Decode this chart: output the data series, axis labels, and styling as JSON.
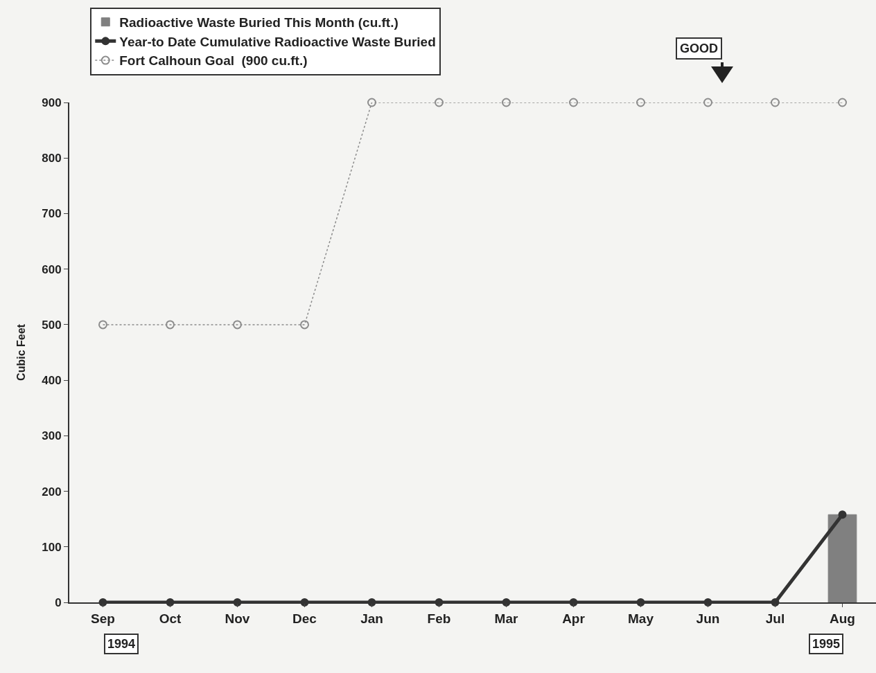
{
  "chart_data": {
    "type": "bar",
    "ylabel": "Cubic Feet",
    "categories": [
      "Sep",
      "Oct",
      "Nov",
      "Dec",
      "Jan",
      "Feb",
      "Mar",
      "Apr",
      "May",
      "Jun",
      "Jul",
      "Aug"
    ],
    "series": [
      {
        "name": "Radioactive Waste Buried This Month (cu.ft.)",
        "color": "#808080",
        "values": [
          null,
          null,
          null,
          null,
          null,
          null,
          null,
          null,
          null,
          null,
          null,
          158
        ]
      },
      {
        "name": "Year-to Date Cumulative Radioactive Waste Buried",
        "type": "line",
        "color": "#333333",
        "marker": "circle",
        "line_style": "solid",
        "values": [
          0,
          0,
          0,
          0,
          0,
          0,
          0,
          0,
          0,
          0,
          0,
          158
        ]
      },
      {
        "name": "Fort Calhoun Goal  (900 cu.ft.)",
        "type": "line",
        "color": "#8c8c8c",
        "marker": "circle",
        "line_style": "dotted",
        "values": [
          500,
          500,
          500,
          500,
          900,
          900,
          900,
          900,
          900,
          900,
          900,
          900
        ]
      }
    ],
    "ylim": [
      0,
      900
    ],
    "yticks": [
      0,
      100,
      200,
      300,
      400,
      500,
      600,
      700,
      800,
      900
    ],
    "grid": false,
    "legend": "top left",
    "annotations": [
      "GOOD",
      "1994",
      "1995"
    ]
  }
}
